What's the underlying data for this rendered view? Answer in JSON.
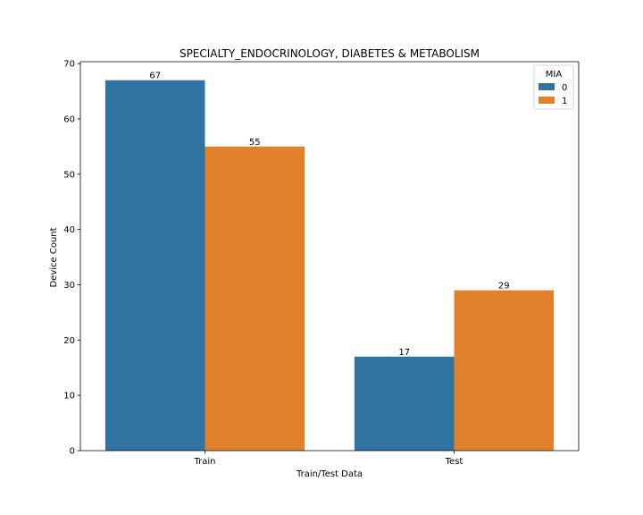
{
  "chart_data": {
    "type": "bar",
    "title": "SPECIALTY_ENDOCRINOLOGY, DIABETES & METABOLISM",
    "xlabel": "Train/Test Data",
    "ylabel": "Device Count",
    "categories": [
      "Train",
      "Test"
    ],
    "series": [
      {
        "name": "0",
        "values": [
          67,
          17
        ],
        "color": "#3274a1"
      },
      {
        "name": "1",
        "values": [
          55,
          29
        ],
        "color": "#e1812c"
      }
    ],
    "ylim": [
      0,
      70.35
    ],
    "yticks": [
      0,
      10,
      20,
      30,
      40,
      50,
      60,
      70
    ],
    "data_labels": true,
    "legend": {
      "title": "MIA",
      "position": "top-right"
    },
    "grid": false
  }
}
